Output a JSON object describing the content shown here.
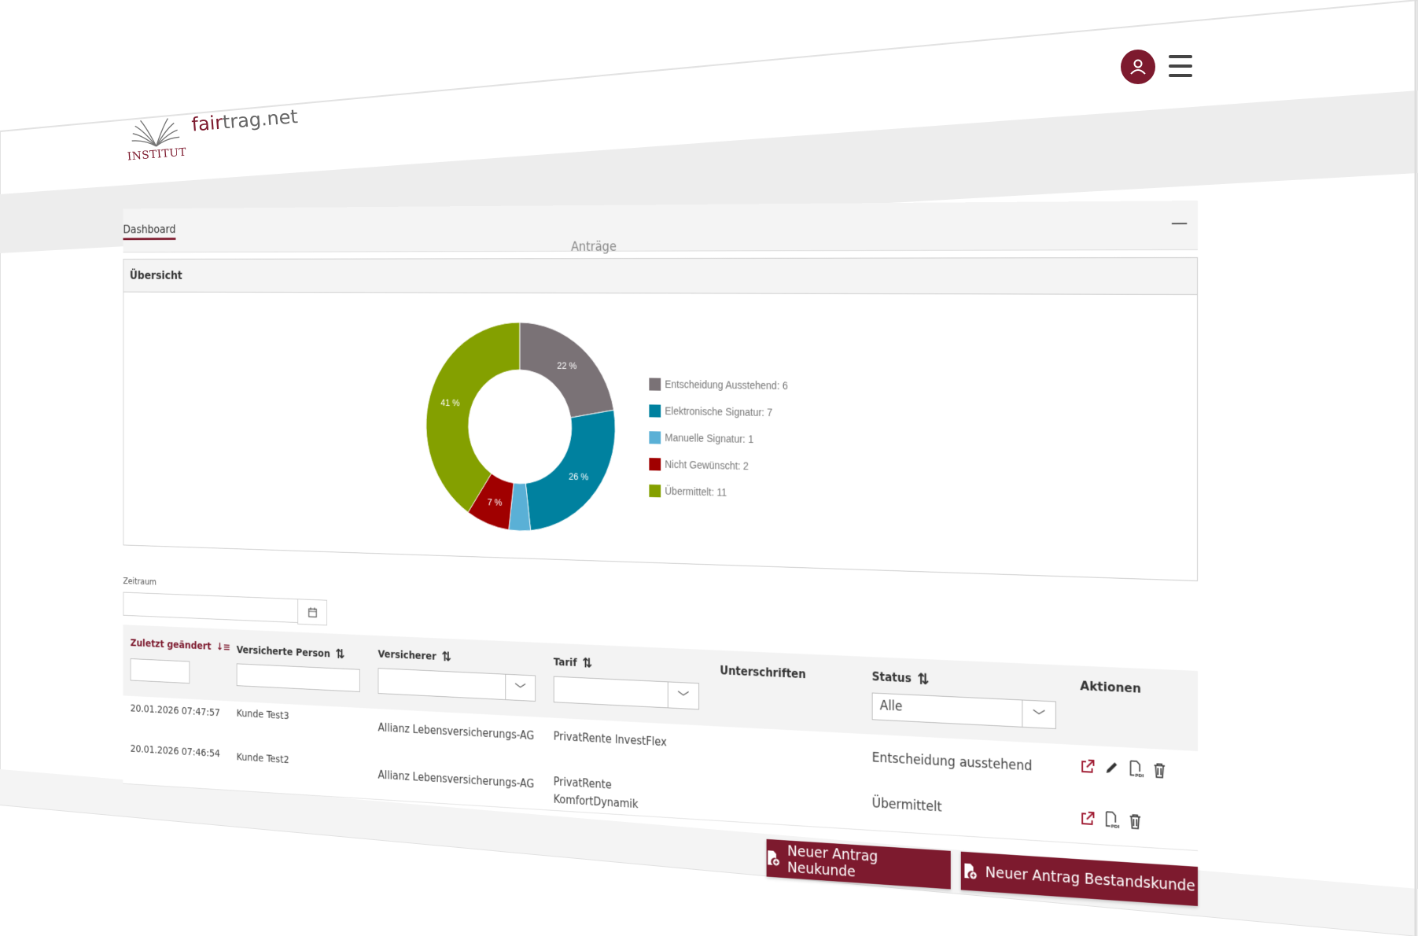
{
  "header": {
    "logo_institut": "INSTITUT",
    "brand_prefix": "fair",
    "brand_suffix": "trag.net",
    "avatar_icon": "user-icon",
    "menu_icon": "hamburger-icon"
  },
  "colors": {
    "brand": "#7d1a2e"
  },
  "tabs": [
    {
      "label": "Dashboard",
      "active": true
    }
  ],
  "panel": {
    "title": "Übersicht",
    "collapse_label": "—"
  },
  "chart_data": {
    "type": "pie",
    "donut": true,
    "title": "Anträge",
    "legend_position": "right",
    "slices": [
      {
        "label": "Entscheidung Ausstehend",
        "value": 6,
        "percent_label": "22 %",
        "color": "#7a7276"
      },
      {
        "label": "Elektronische Signatur",
        "value": 7,
        "percent_label": "26 %",
        "color": "#00819f"
      },
      {
        "label": "Manuelle Signatur",
        "value": 1,
        "percent_label": "",
        "color": "#5ab0d6"
      },
      {
        "label": "Nicht Gewünscht",
        "value": 2,
        "percent_label": "7 %",
        "color": "#a00000"
      },
      {
        "label": "Übermittelt",
        "value": 11,
        "percent_label": "41 %",
        "color": "#84a000"
      }
    ],
    "legend": [
      "Entscheidung Ausstehend: 6",
      "Elektronische Signatur: 7",
      "Manuelle Signatur: 1",
      "Nicht Gewünscht: 2",
      "Übermittelt: 11"
    ]
  },
  "filter": {
    "zeitraum_label": "Zeitraum",
    "zeitraum_value": ""
  },
  "table": {
    "columns": [
      {
        "label": "Zuletzt geändert",
        "sort": "desc"
      },
      {
        "label": "Versicherte Person",
        "sort": "none"
      },
      {
        "label": "Versicherer",
        "sort": "none"
      },
      {
        "label": "Tarif",
        "sort": "none"
      },
      {
        "label": "Unterschriften"
      },
      {
        "label": "Status",
        "sort": "none"
      },
      {
        "label": "Aktionen"
      }
    ],
    "status_filter": "Alle",
    "rows": [
      {
        "date": "20.01.2026 07:47:57",
        "person": "Kunde Test3",
        "versicherer": "Allianz Lebensversicherungs-AG",
        "tarif": "PrivatRente InvestFlex",
        "tarif2": "",
        "status": "Entscheidung ausstehend",
        "actions": [
          "open-external-icon",
          "edit-icon",
          "pdf-icon",
          "trash-icon"
        ]
      },
      {
        "date": "20.01.2026 07:46:54",
        "person": "Kunde Test2",
        "versicherer": "Allianz Lebensversicherungs-AG",
        "tarif": "PrivatRente",
        "tarif2": "KomfortDynamik",
        "status": "Übermittelt",
        "actions": [
          "open-external-icon",
          "pdf-icon",
          "trash-icon"
        ]
      }
    ]
  },
  "buttons": {
    "new_customer": "Neuer Antrag Neukunde",
    "existing_customer": "Neuer Antrag Bestandskunde"
  }
}
